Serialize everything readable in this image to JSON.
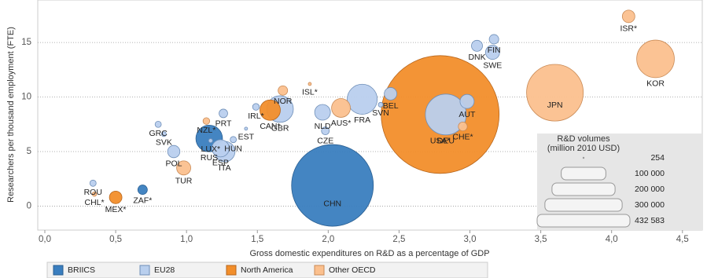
{
  "chart_data": {
    "type": "bubble",
    "x_label": "Gross domestic expenditures on  R&D as a percentage of GDP",
    "y_label": "Researchers per thousand employment (FTE)",
    "xlim": [
      -0.05,
      4.64
    ],
    "ylim": [
      -2.2,
      18.9
    ],
    "xticks": [
      {
        "value": 0,
        "label": "0,0"
      },
      {
        "value": 0.5,
        "label": "0,5"
      },
      {
        "value": 1,
        "label": "1,0"
      },
      {
        "value": 1.5,
        "label": "1,5"
      },
      {
        "value": 2,
        "label": "2,0"
      },
      {
        "value": 2.5,
        "label": "2,5"
      },
      {
        "value": 3,
        "label": "3,0"
      },
      {
        "value": 3.5,
        "label": "3,5"
      },
      {
        "value": 4,
        "label": "4,0"
      },
      {
        "value": 4.5,
        "label": "4,5"
      }
    ],
    "yticks": [
      0,
      5,
      10,
      15
    ],
    "grid": true,
    "size_legend_title": [
      "R&D volumes",
      "(million 2010 USD)"
    ],
    "size_legend": [
      254,
      {
        "value": 100000,
        "label": "100 000"
      },
      {
        "value": 200000,
        "label": "200 000"
      },
      {
        "value": 300000,
        "label": "300 000"
      },
      {
        "value": 432583,
        "label": "432 583"
      }
    ],
    "series": [
      {
        "name": "BRIICS",
        "color": "#3a7ebf",
        "stroke": "#2a5f92",
        "labels": [
          "CHN",
          "RUS",
          "ZAF*"
        ],
        "x": [
          2.03,
          1.16,
          0.69
        ],
        "y": [
          1.9,
          6.2,
          1.5
        ],
        "sizes": [
          208000,
          22000,
          2800
        ]
      },
      {
        "name": "EU28",
        "color": "#b9cfee",
        "stroke": "#6f8fb8",
        "labels": [
          "ROU",
          "GRC",
          "SVK",
          "POL",
          "PRT",
          "LUX*",
          "ESP",
          "ITA",
          "HUN",
          "EST",
          "IRL*",
          "GBR",
          "NLD",
          "CZE",
          "FRA",
          "SVN",
          "BEL",
          "DEU",
          "AUT",
          "DNK",
          "FIN",
          "SWE"
        ],
        "x": [
          0.34,
          0.8,
          0.84,
          0.91,
          1.26,
          1.17,
          1.24,
          1.27,
          1.33,
          1.42,
          1.49,
          1.66,
          1.96,
          1.98,
          2.24,
          2.37,
          2.44,
          2.83,
          2.98,
          3.05,
          3.17,
          3.16
        ],
        "y": [
          2.1,
          7.5,
          6.6,
          5.0,
          8.5,
          6.0,
          5.3,
          5.0,
          6.1,
          7.1,
          9.1,
          8.9,
          8.6,
          6.9,
          9.8,
          9.3,
          10.3,
          8.4,
          9.6,
          14.7,
          15.3,
          14.1
        ],
        "sizes": [
          1230,
          1200,
          700,
          4700,
          2300,
          500,
          9300,
          13000,
          1200,
          300,
          1400,
          22000,
          7700,
          1900,
          28000,
          700,
          4900,
          52000,
          6200,
          3800,
          2800,
          6200
        ]
      },
      {
        "name": "North America",
        "color": "#f28e2b",
        "stroke": "#b8661c",
        "labels": [
          "MEX*",
          "CAN*",
          "USA*"
        ],
        "x": [
          0.5,
          1.59,
          2.79
        ],
        "y": [
          0.8,
          8.8,
          8.4
        ],
        "sizes": [
          4900,
          13000,
          432583
        ]
      },
      {
        "name": "Other OECD",
        "color": "#fbc08e",
        "stroke": "#c98a55",
        "labels": [
          "CHL*",
          "TUR",
          "NZL*",
          "NOR",
          "ISL*",
          "AUS*",
          "CHE*",
          "ISR*",
          "JPN",
          "KOR"
        ],
        "x": [
          0.35,
          0.98,
          1.14,
          1.68,
          1.87,
          2.09,
          2.95,
          4.12,
          3.6,
          4.31
        ],
        "y": [
          1.1,
          3.5,
          7.8,
          10.6,
          11.2,
          9.0,
          7.3,
          17.4,
          10.4,
          13.5
        ],
        "sizes": [
          600,
          6200,
          1400,
          2800,
          300,
          11000,
          2500,
          4900,
          100000,
          44000
        ]
      }
    ]
  }
}
